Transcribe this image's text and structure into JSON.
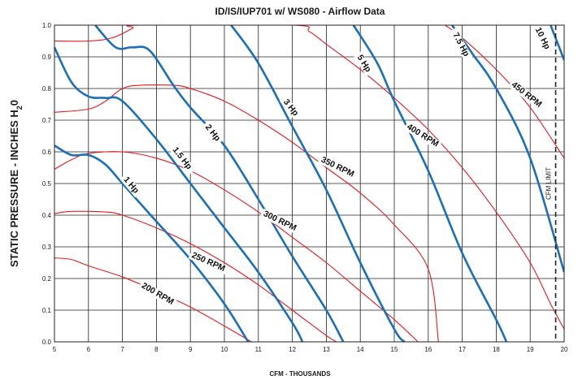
{
  "chart_data": {
    "type": "line",
    "title": "ID/IS/IUP701 w/ WS080  -  Airflow Data",
    "xlabel": "CFM - THOUSANDS",
    "ylabel_main": "STATIC PRESSURE - INCHES H",
    "ylabel_sub": "2",
    "ylabel_tail": "0",
    "xlim": [
      5,
      20
    ],
    "ylim": [
      0,
      1.0
    ],
    "x_ticks": [
      "5",
      "6",
      "7",
      "8",
      "9",
      "10",
      "11",
      "12",
      "13",
      "14",
      "15",
      "16",
      "17",
      "18",
      "19",
      "20"
    ],
    "y_ticks": [
      "0.0",
      "0.1",
      "0.2",
      "0.3",
      "0.4",
      "0.5",
      "0.6",
      "0.7",
      "0.8",
      "0.9",
      "1.0"
    ],
    "grid": true,
    "colors": {
      "rpm": "#e8191e",
      "hp": "#1a6fb8"
    },
    "limit": {
      "label": "CFM LIMIT",
      "x": 19.75
    },
    "rpm_curves": [
      {
        "label": "200 RPM",
        "points": [
          [
            5,
            0.265
          ],
          [
            5.5,
            0.26
          ],
          [
            6,
            0.24
          ],
          [
            7,
            0.205
          ],
          [
            8,
            0.16
          ],
          [
            9,
            0.11
          ],
          [
            10,
            0.05
          ],
          [
            10.8,
            0.0
          ]
        ]
      },
      {
        "label": "250 RPM",
        "points": [
          [
            5,
            0.405
          ],
          [
            5.5,
            0.412
          ],
          [
            6.5,
            0.41
          ],
          [
            7,
            0.4
          ],
          [
            8,
            0.36
          ],
          [
            9,
            0.31
          ],
          [
            10,
            0.25
          ],
          [
            11,
            0.18
          ],
          [
            12,
            0.1
          ],
          [
            13,
            0.02
          ],
          [
            13.3,
            0.0
          ]
        ]
      },
      {
        "label": "300 RPM",
        "points": [
          [
            5,
            0.545
          ],
          [
            5.5,
            0.575
          ],
          [
            6,
            0.595
          ],
          [
            7,
            0.6
          ],
          [
            8,
            0.58
          ],
          [
            9,
            0.54
          ],
          [
            10,
            0.48
          ],
          [
            11,
            0.41
          ],
          [
            12,
            0.33
          ],
          [
            13,
            0.25
          ],
          [
            14,
            0.16
          ],
          [
            15,
            0.07
          ],
          [
            15.7,
            0.0
          ]
        ]
      },
      {
        "label": "350 RPM",
        "points": [
          [
            5,
            0.725
          ],
          [
            6,
            0.735
          ],
          [
            6.5,
            0.76
          ],
          [
            7,
            0.8
          ],
          [
            7.5,
            0.81
          ],
          [
            8.5,
            0.81
          ],
          [
            9,
            0.8
          ],
          [
            10,
            0.76
          ],
          [
            11,
            0.7
          ],
          [
            12,
            0.63
          ],
          [
            13,
            0.55
          ],
          [
            14,
            0.47
          ],
          [
            15,
            0.37
          ],
          [
            16,
            0.23
          ],
          [
            16.3,
            0.0
          ]
        ]
      },
      {
        "label": "400 RPM",
        "points": [
          [
            5,
            0.95
          ],
          [
            6,
            0.95
          ],
          [
            6.7,
            0.96
          ],
          [
            7.3,
            0.99
          ],
          [
            7.5,
            1.0
          ],
          [
            12,
            1.0
          ],
          [
            12.5,
            0.98
          ],
          [
            13,
            0.94
          ],
          [
            14,
            0.86
          ],
          [
            15,
            0.77
          ],
          [
            16,
            0.67
          ],
          [
            17,
            0.55
          ],
          [
            18,
            0.41
          ],
          [
            19,
            0.25
          ],
          [
            19.6,
            0.12
          ],
          [
            20,
            0.04
          ]
        ]
      },
      {
        "label": "450 RPM",
        "points": [
          [
            16.5,
            1.0
          ],
          [
            17,
            0.96
          ],
          [
            18,
            0.86
          ],
          [
            19,
            0.74
          ],
          [
            20,
            0.58
          ]
        ]
      }
    ],
    "hp_curves": [
      {
        "label": "1 Hp",
        "points": [
          [
            5,
            0.62
          ],
          [
            5.5,
            0.59
          ],
          [
            6,
            0.59
          ],
          [
            6.5,
            0.56
          ],
          [
            7,
            0.5
          ],
          [
            8,
            0.38
          ],
          [
            9,
            0.26
          ],
          [
            10,
            0.12
          ],
          [
            10.7,
            0.0
          ]
        ]
      },
      {
        "label": "1.5 Hp",
        "points": [
          [
            5,
            0.93
          ],
          [
            5.5,
            0.82
          ],
          [
            6,
            0.775
          ],
          [
            6.5,
            0.77
          ],
          [
            7,
            0.76
          ],
          [
            8,
            0.64
          ],
          [
            9,
            0.5
          ],
          [
            10,
            0.36
          ],
          [
            11,
            0.22
          ],
          [
            12,
            0.06
          ],
          [
            12.3,
            0.0
          ]
        ]
      },
      {
        "label": "2 Hp",
        "points": [
          [
            6.2,
            1.0
          ],
          [
            6.8,
            0.93
          ],
          [
            7.3,
            0.93
          ],
          [
            7.8,
            0.92
          ],
          [
            8.5,
            0.81
          ],
          [
            9,
            0.74
          ],
          [
            10,
            0.62
          ],
          [
            11,
            0.45
          ],
          [
            12,
            0.27
          ],
          [
            13,
            0.1
          ],
          [
            13.5,
            0.0
          ]
        ]
      },
      {
        "label": "3 Hp",
        "points": [
          [
            10.2,
            1.0
          ],
          [
            11,
            0.88
          ],
          [
            12,
            0.68
          ],
          [
            13,
            0.48
          ],
          [
            14,
            0.25
          ],
          [
            15,
            0.04
          ],
          [
            15.3,
            0.0
          ]
        ]
      },
      {
        "label": "5 Hp",
        "points": [
          [
            13.8,
            1.0
          ],
          [
            14.5,
            0.88
          ],
          [
            15,
            0.76
          ],
          [
            16,
            0.54
          ],
          [
            17,
            0.28
          ],
          [
            18,
            0.07
          ],
          [
            18.3,
            0.0
          ]
        ]
      },
      {
        "label": "7.5 Hp",
        "points": [
          [
            16.7,
            1.0
          ],
          [
            17.3,
            0.91
          ],
          [
            18,
            0.8
          ],
          [
            19,
            0.58
          ],
          [
            20,
            0.22
          ]
        ]
      },
      {
        "label": "10 Hp",
        "points": [
          [
            19.6,
            1.0
          ],
          [
            20,
            0.89
          ]
        ]
      }
    ],
    "labels": [
      {
        "text": "200 RPM",
        "x": 8.0,
        "y": 0.145,
        "angle": 30
      },
      {
        "text": "250 RPM",
        "x": 9.5,
        "y": 0.245,
        "angle": 24
      },
      {
        "text": "300 RPM",
        "x": 11.6,
        "y": 0.375,
        "angle": 26
      },
      {
        "text": "350 RPM",
        "x": 13.3,
        "y": 0.545,
        "angle": 26
      },
      {
        "text": "400 RPM",
        "x": 15.8,
        "y": 0.645,
        "angle": 32
      },
      {
        "text": "450 RPM",
        "x": 18.85,
        "y": 0.775,
        "angle": 38
      },
      {
        "text": "1 Hp",
        "x": 7.2,
        "y": 0.49,
        "angle": 50
      },
      {
        "text": "1.5 Hp",
        "x": 8.7,
        "y": 0.575,
        "angle": 52
      },
      {
        "text": "2 Hp",
        "x": 9.6,
        "y": 0.655,
        "angle": 52
      },
      {
        "text": "3 Hp",
        "x": 11.9,
        "y": 0.735,
        "angle": 52
      },
      {
        "text": "5 Hp",
        "x": 14.05,
        "y": 0.875,
        "angle": 58
      },
      {
        "text": "7.5 Hp",
        "x": 16.9,
        "y": 0.935,
        "angle": 62
      },
      {
        "text": "10 Hp",
        "x": 19.3,
        "y": 0.955,
        "angle": 64
      }
    ]
  }
}
